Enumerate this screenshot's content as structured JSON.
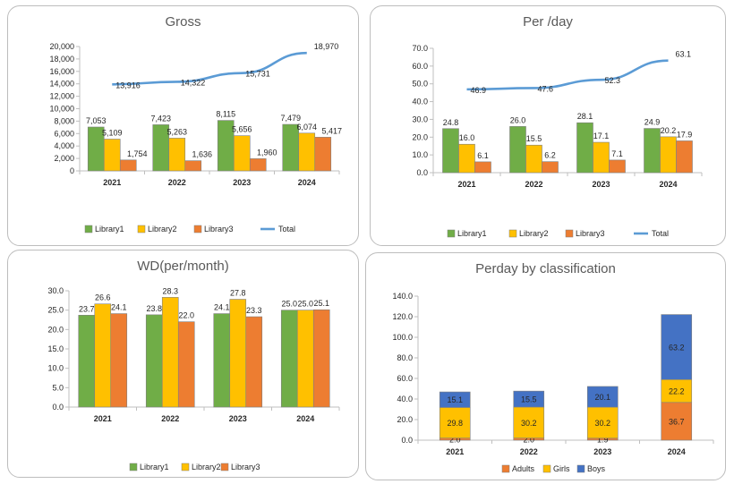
{
  "colors": {
    "library1": "#70ad47",
    "library2": "#ffc000",
    "library3": "#ed7d31",
    "total": "#5b9bd5",
    "adults": "#ed7d31",
    "girls": "#ffc000",
    "boys": "#4472c4",
    "axis": "#bfbfbf",
    "text": "#262626",
    "title": "#595959"
  },
  "chart_data": [
    {
      "type": "bar",
      "title": "Gross",
      "categories": [
        "2021",
        "2022",
        "2023",
        "2024"
      ],
      "series": [
        {
          "name": "Library1",
          "values": [
            7053,
            7423,
            8115,
            7479
          ]
        },
        {
          "name": "Library2",
          "values": [
            5109,
            5263,
            5656,
            6074
          ]
        },
        {
          "name": "Library3",
          "values": [
            1754,
            1636,
            1960,
            5417
          ]
        },
        {
          "name": "Total",
          "type": "line",
          "values": [
            13916,
            14322,
            15731,
            18970
          ]
        }
      ],
      "value_labels": {
        "Library1": [
          "7,053",
          "7,423",
          "8,115",
          "7,479"
        ],
        "Library2": [
          "5,109",
          "5,263",
          "5,656",
          "6,074"
        ],
        "Library3": [
          "1,754",
          "1,636",
          "1,960",
          "5,417"
        ],
        "Total": [
          "13,916",
          "14,322",
          "15,731",
          "18,970"
        ]
      },
      "ylim": [
        0,
        20000
      ],
      "yticks": [
        0,
        2000,
        4000,
        6000,
        8000,
        10000,
        12000,
        14000,
        16000,
        18000,
        20000
      ],
      "ytick_labels": [
        "0",
        "2,000",
        "4,000",
        "6,000",
        "8,000",
        "10,000",
        "12,000",
        "14,000",
        "16,000",
        "18,000",
        "20,000"
      ],
      "legend": "bottom",
      "grid": false
    },
    {
      "type": "bar",
      "title": "Per /day",
      "categories": [
        "2021",
        "2022",
        "2023",
        "2024"
      ],
      "series": [
        {
          "name": "Library1",
          "values": [
            24.8,
            26.0,
            28.1,
            24.9
          ]
        },
        {
          "name": "Library2",
          "values": [
            16.0,
            15.5,
            17.1,
            20.2
          ]
        },
        {
          "name": "Library3",
          "values": [
            6.1,
            6.2,
            7.1,
            17.9
          ]
        },
        {
          "name": "Total",
          "type": "line",
          "values": [
            46.9,
            47.6,
            52.3,
            63.1
          ]
        }
      ],
      "value_labels": {
        "Library1": [
          "24.8",
          "26.0",
          "28.1",
          "24.9"
        ],
        "Library2": [
          "16.0",
          "15.5",
          "17.1",
          "20.2"
        ],
        "Library3": [
          "6.1",
          "6.2",
          "7.1",
          "17.9"
        ],
        "Total": [
          "46.9",
          "47.6",
          "52.3",
          "63.1"
        ]
      },
      "ylim": [
        0,
        70
      ],
      "yticks": [
        0,
        10,
        20,
        30,
        40,
        50,
        60,
        70
      ],
      "ytick_labels": [
        "0.0",
        "10.0",
        "20.0",
        "30.0",
        "40.0",
        "50.0",
        "60.0",
        "70.0"
      ],
      "legend": "bottom",
      "grid": false
    },
    {
      "type": "bar",
      "title": "WD(per/month)",
      "categories": [
        "2021",
        "2022",
        "2023",
        "2024"
      ],
      "series": [
        {
          "name": "Library1",
          "values": [
            23.7,
            23.8,
            24.1,
            25.0
          ]
        },
        {
          "name": "Library2",
          "values": [
            26.6,
            28.3,
            27.8,
            25.0
          ]
        },
        {
          "name": "Library3",
          "values": [
            24.1,
            22.0,
            23.3,
            25.1
          ]
        }
      ],
      "value_labels": {
        "Library1": [
          "23.7",
          "23.8",
          "24.1",
          "25.0"
        ],
        "Library2": [
          "26.6",
          "28.3",
          "27.8",
          "25.0"
        ],
        "Library3": [
          "24.1",
          "22.0",
          "23.3",
          "25.1"
        ]
      },
      "ylim": [
        0,
        30
      ],
      "yticks": [
        0,
        5,
        10,
        15,
        20,
        25,
        30
      ],
      "ytick_labels": [
        "0.0",
        "5.0",
        "10.0",
        "15.0",
        "20.0",
        "25.0",
        "30.0"
      ],
      "legend": "bottom",
      "grid": false
    },
    {
      "type": "bar",
      "stacked": true,
      "title": "Perday by classification",
      "categories": [
        "2021",
        "2022",
        "2023",
        "2024"
      ],
      "series": [
        {
          "name": "Adults",
          "values": [
            2.0,
            2.0,
            1.9,
            36.7
          ]
        },
        {
          "name": "Girls",
          "values": [
            29.8,
            30.2,
            30.2,
            22.2
          ]
        },
        {
          "name": "Boys",
          "values": [
            15.1,
            15.5,
            20.1,
            63.2
          ]
        }
      ],
      "value_labels": {
        "Adults": [
          "2.0",
          "2.0",
          "1.9",
          "36.7"
        ],
        "Girls": [
          "29.8",
          "30.2",
          "30.2",
          "22.2"
        ],
        "Boys": [
          "15.1",
          "15.5",
          "20.1",
          "63.2"
        ]
      },
      "ylim": [
        0,
        140
      ],
      "yticks": [
        0,
        20,
        40,
        60,
        80,
        100,
        120,
        140
      ],
      "ytick_labels": [
        "0.0",
        "20.0",
        "40.0",
        "60.0",
        "80.0",
        "100.0",
        "120.0",
        "140.0"
      ],
      "legend": "bottom",
      "grid": false
    }
  ]
}
